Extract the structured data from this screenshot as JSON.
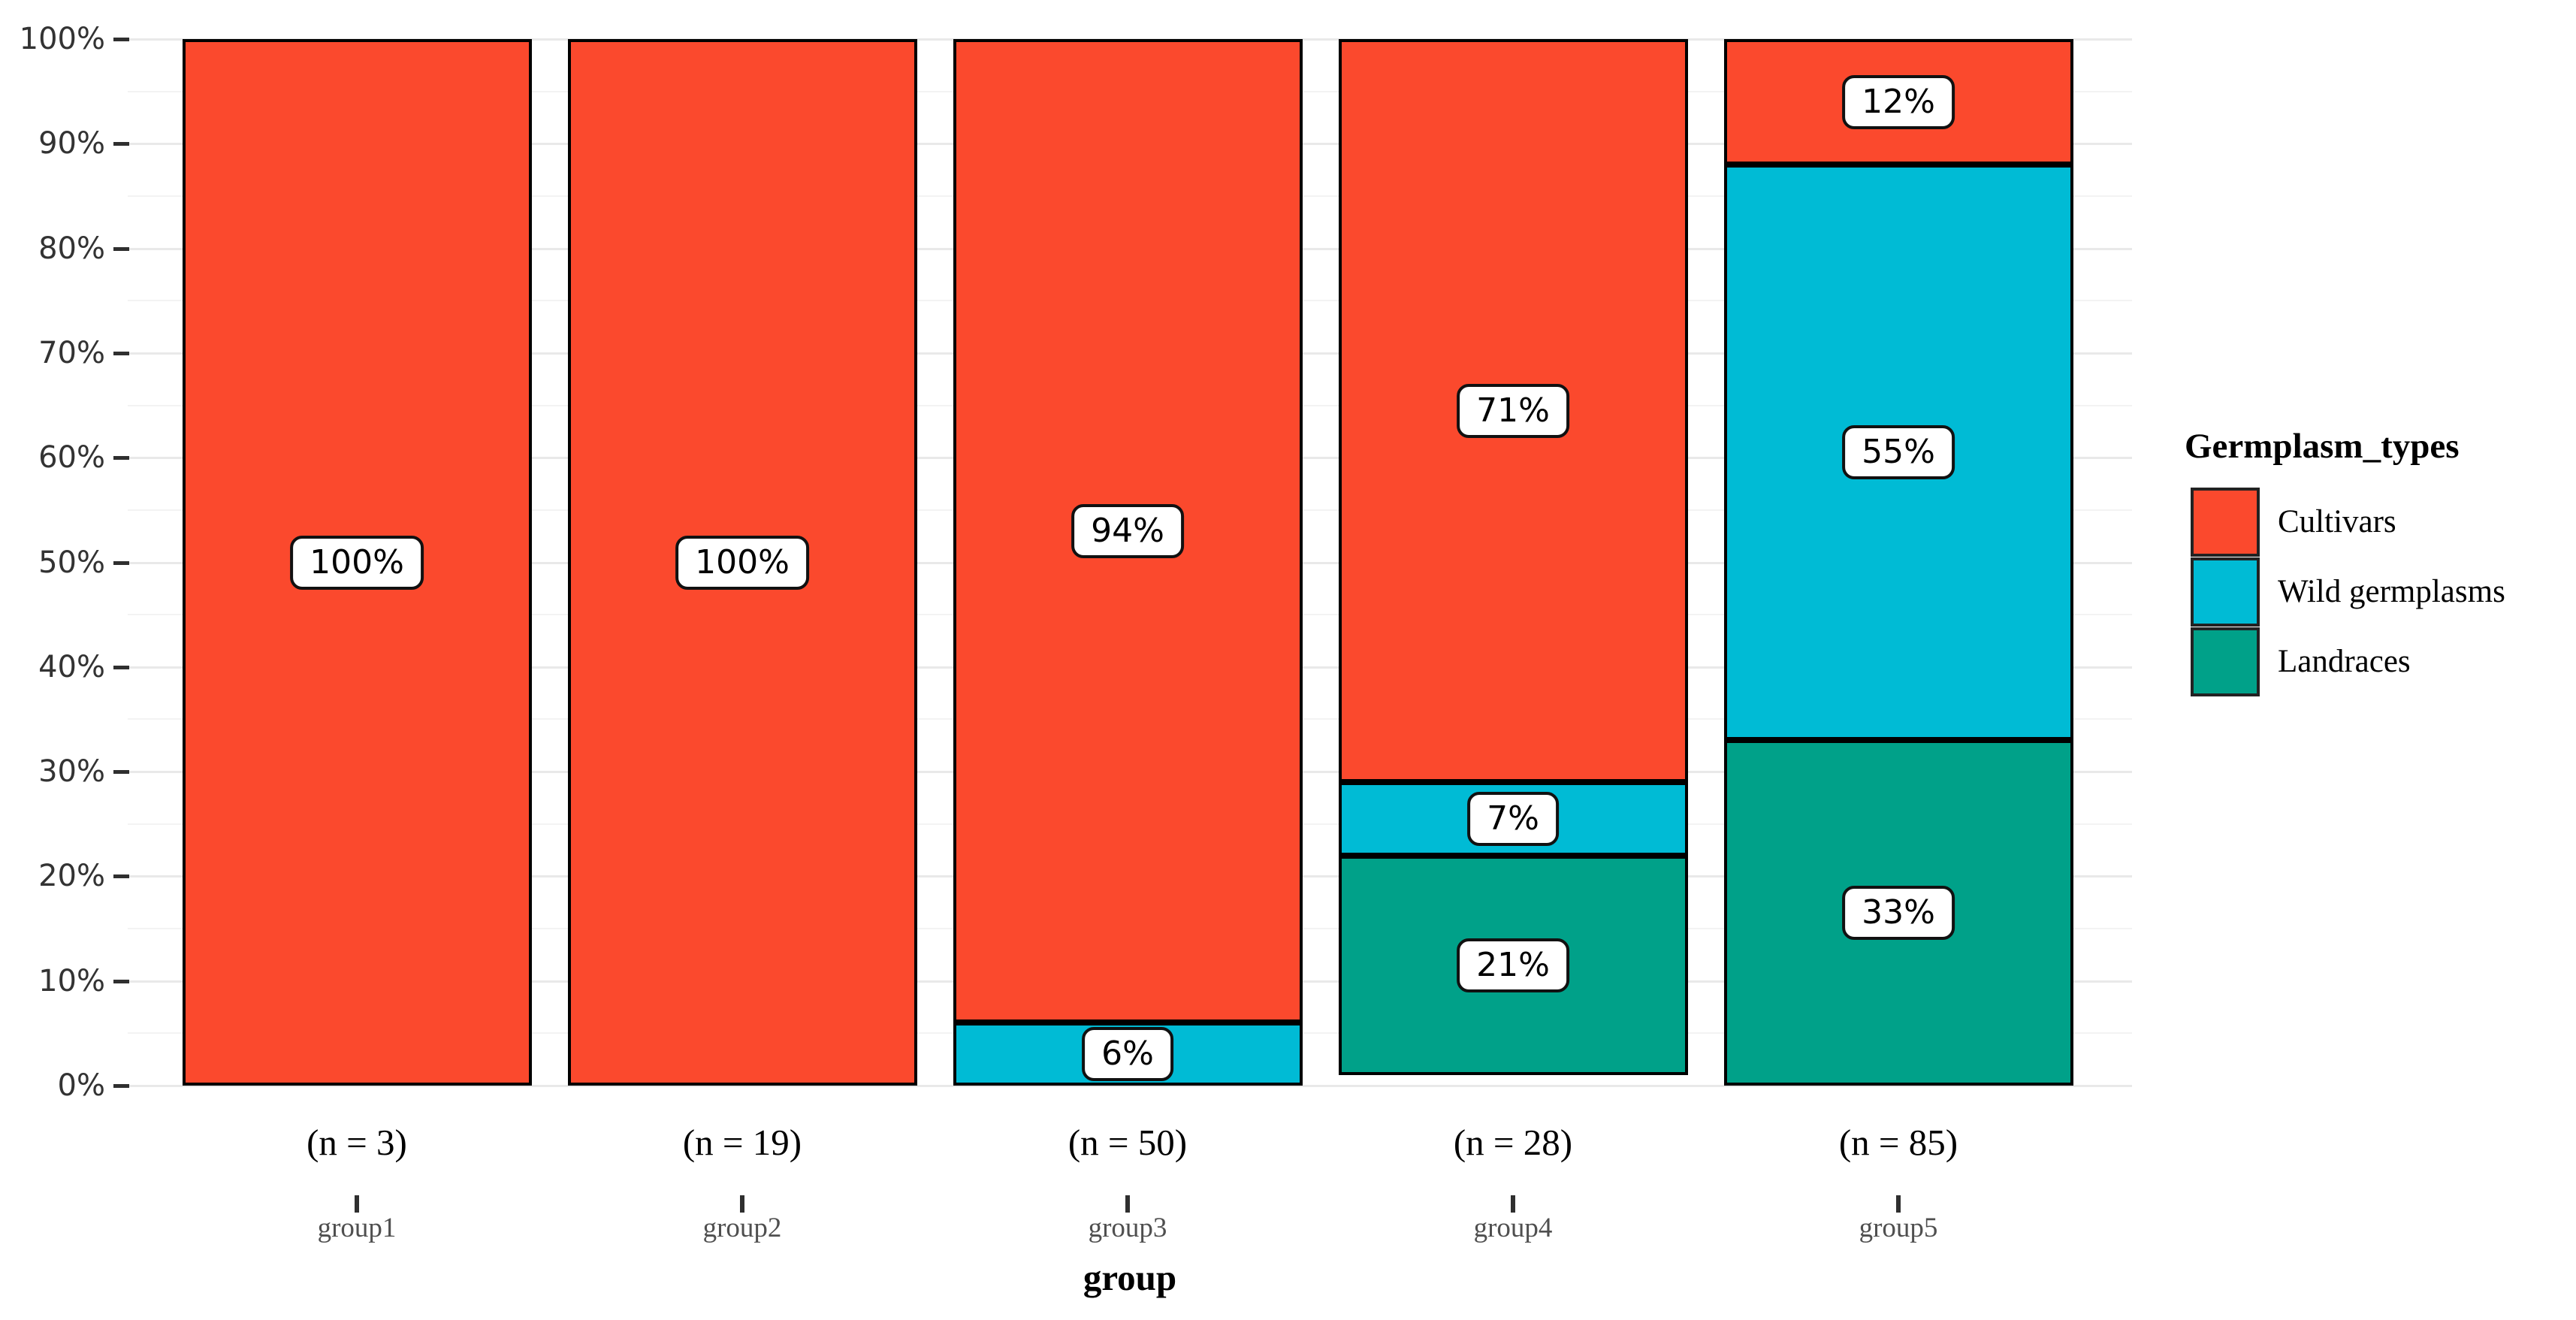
{
  "chart_data": {
    "type": "bar",
    "variant": "stacked-percent",
    "title": "",
    "xlabel": "group",
    "ylabel": "",
    "legend_title": "Germplasm_types",
    "legend_position": "right",
    "grid": true,
    "categories": [
      "group1",
      "group2",
      "group3",
      "group4",
      "group5"
    ],
    "category_counts": [
      "(n = 3)",
      "(n = 19)",
      "(n = 50)",
      "(n = 28)",
      "(n = 85)"
    ],
    "series": [
      {
        "name": "Cultivars",
        "color": "#FB492D",
        "values": [
          100,
          100,
          94,
          71,
          12
        ]
      },
      {
        "name": "Wild germplasms",
        "color": "#00BBD5",
        "values": [
          0,
          0,
          6,
          7,
          55
        ]
      },
      {
        "name": "Landraces",
        "color": "#00A189",
        "values": [
          0,
          0,
          0,
          21,
          33
        ]
      }
    ],
    "bar_value_labels": [
      [
        "100%"
      ],
      [
        "100%"
      ],
      [
        "94%",
        "6%"
      ],
      [
        "71%",
        "7%",
        "21%"
      ],
      [
        "12%",
        "55%",
        "33%"
      ]
    ],
    "yaxis": {
      "ylim": [
        0,
        100
      ],
      "ticks": [
        0,
        10,
        20,
        30,
        40,
        50,
        60,
        70,
        80,
        90,
        100
      ],
      "tick_labels": [
        "0%",
        "10%",
        "20%",
        "30%",
        "40%",
        "50%",
        "60%",
        "70%",
        "80%",
        "90%",
        "100%"
      ],
      "minor_step": 5
    },
    "colors": {
      "background": "#ffffff",
      "bar_outline": "#000000",
      "grid_major": "#e9e9e9",
      "grid_minor": "#f3f3f3",
      "axis_text": "#333333",
      "tick_mark": "#2f2f2f",
      "category_text": "#4f4f4f",
      "label_box_bg": "#ffffff",
      "label_box_border": "#111111"
    }
  }
}
